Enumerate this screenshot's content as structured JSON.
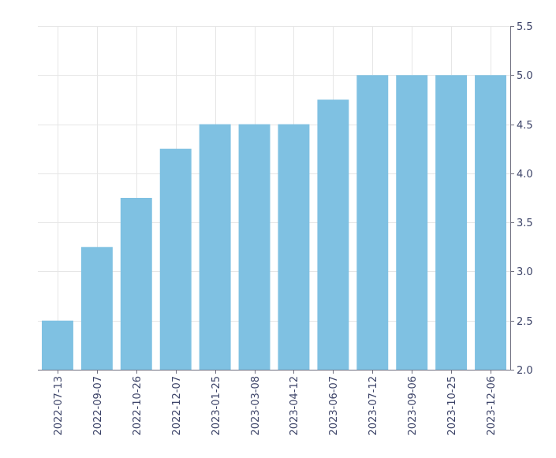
{
  "chart_data": {
    "type": "bar",
    "title": "",
    "xlabel": "",
    "ylabel": "",
    "categories": [
      "2022-07-13",
      "2022-09-07",
      "2022-10-26",
      "2022-12-07",
      "2023-01-25",
      "2023-03-08",
      "2023-04-12",
      "2023-06-07",
      "2023-07-12",
      "2023-09-06",
      "2023-10-25",
      "2023-12-06"
    ],
    "values": [
      2.5,
      3.25,
      3.75,
      4.25,
      4.5,
      4.5,
      4.5,
      4.75,
      5.0,
      5.0,
      5.0,
      5.0
    ],
    "ylim": [
      2.0,
      5.5
    ],
    "y_ticks": [
      "2.0",
      "2.5",
      "3.0",
      "3.5",
      "4.0",
      "4.5",
      "5.0",
      "5.5"
    ],
    "y_axis_side": "right",
    "grid": true,
    "legend": "none",
    "bar_color": "#7fc1e2"
  }
}
